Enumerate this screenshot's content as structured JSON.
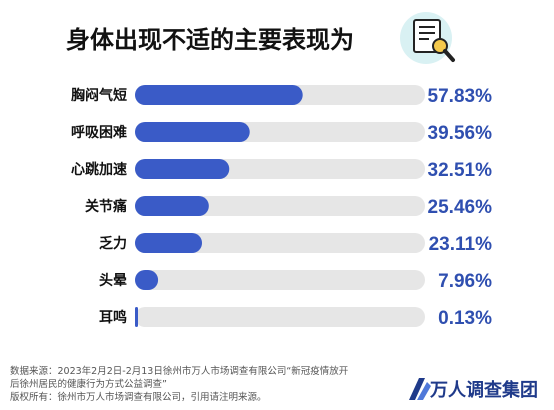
{
  "header": {
    "title": "身体出现不适的主要表现为",
    "icon": "document-magnifier-icon"
  },
  "chart_data": {
    "type": "bar",
    "orientation": "horizontal",
    "categories": [
      "胸闷气短",
      "呼吸困难",
      "心跳加速",
      "关节痛",
      "乏力",
      "头晕",
      "耳鸣"
    ],
    "values": [
      57.83,
      39.56,
      32.51,
      25.46,
      23.11,
      7.96,
      0.13
    ],
    "value_labels": [
      "57.83%",
      "39.56%",
      "32.51%",
      "25.46%",
      "23.11%",
      "7.96%",
      "0.13%"
    ],
    "xlim": [
      0,
      100
    ],
    "title": "身体出现不适的主要表现为",
    "xlabel": "",
    "ylabel": "",
    "grid": false,
    "bar_color": "#3a5bc7",
    "track_color": "#e6e6e6",
    "label_color": "#2f4fb0"
  },
  "footer": {
    "line1": "数据来源：2023年2月2日-2月13日徐州市万人市场调查有限公司“新冠疫情放开",
    "line2": "后徐州居民的健康行为方式公益调查”",
    "line3": "版权所有：徐州市万人市场调查有限公司，引用请注明来源。"
  },
  "logo": {
    "text": "万人调查集团",
    "icon": "wanren-logo-icon"
  }
}
